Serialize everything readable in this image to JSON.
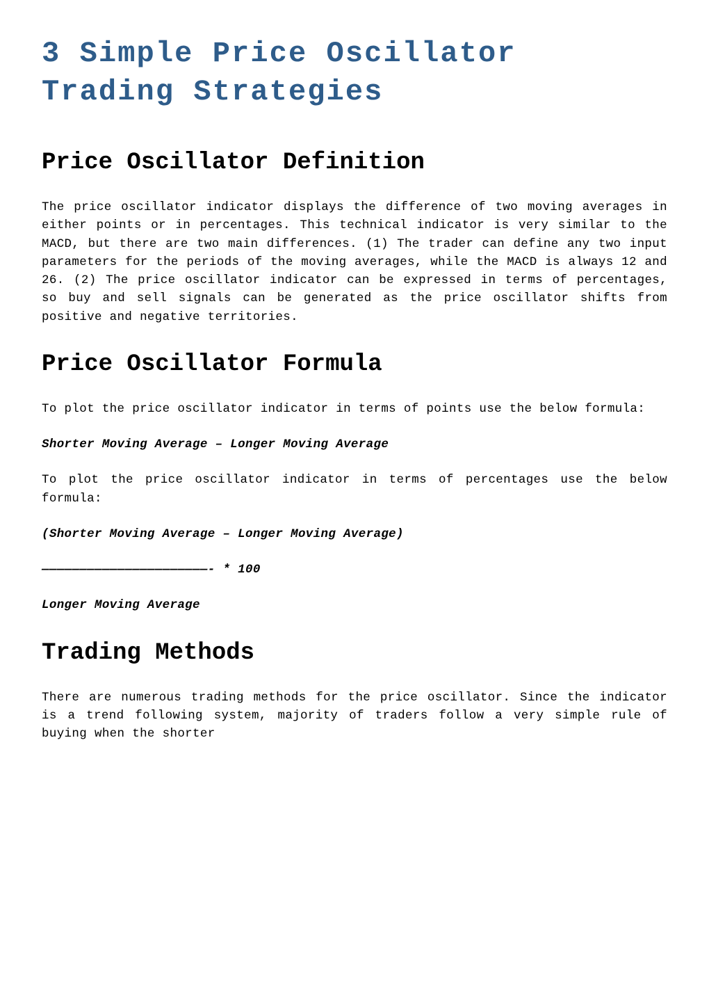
{
  "title_line1": "3 Simple Price Oscillator",
  "title_line2": "Trading Strategies",
  "title_color": "#2e5c8a",
  "section1": {
    "heading": "Price Oscillator Definition",
    "paragraph": "The price oscillator indicator displays the difference of two moving averages in either points or in percentages.  This technical indicator is very similar to the MACD, but there are two main differences.  (1) The trader can define any two input parameters for the periods of the moving averages, while the MACD is always 12 and 26.  (2) The price oscillator indicator can be expressed in terms of percentages, so buy and sell signals can be generated as the price oscillator shifts from positive and negative territories."
  },
  "section2": {
    "heading": "Price Oscillator Formula",
    "paragraph1": "To plot the price oscillator indicator in terms of points use the below formula:",
    "formula1": "Shorter Moving Average – Longer Moving Average",
    "paragraph2": "To plot the price oscillator indicator in terms of percentages use the below formula:",
    "formula2": "(Shorter Moving Average – Longer Moving Average)",
    "formula3": "——————————————————————-    *  100",
    "formula4": "Longer Moving Average"
  },
  "section3": {
    "heading": "Trading Methods",
    "paragraph": "There are numerous trading methods for the price oscillator.  Since the indicator is a trend following system, majority of traders follow a very simple rule of buying when the shorter"
  },
  "typography": {
    "body_font": "Courier New, monospace",
    "h1_fontsize": 42,
    "h2_fontsize": 34,
    "body_fontsize": 17.5,
    "background_color": "#ffffff",
    "text_color": "#000000",
    "link_color": "#2e5c8a"
  }
}
